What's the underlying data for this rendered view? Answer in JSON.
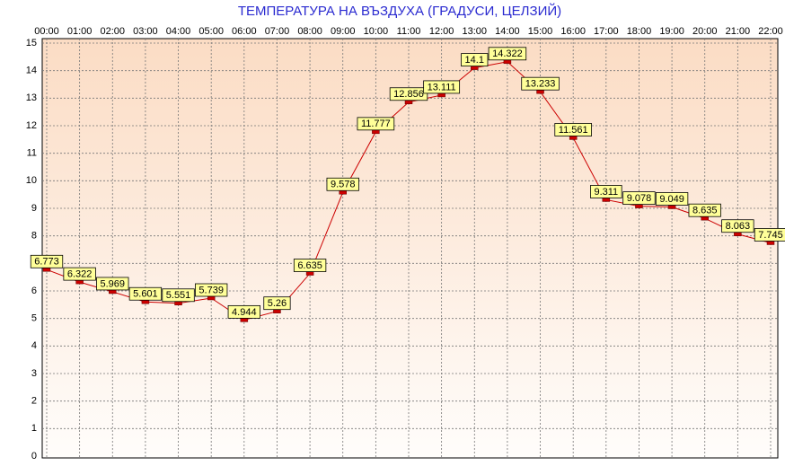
{
  "chart_data": {
    "type": "line",
    "title": "ТЕМПЕРАТУРА НА ВЪЗДУХА  (ГРАДУСИ, ЦЕЛЗИЙ)",
    "categories": [
      "00:00",
      "01:00",
      "02:00",
      "03:00",
      "04:00",
      "05:00",
      "06:00",
      "07:00",
      "08:00",
      "09:00",
      "10:00",
      "11:00",
      "12:00",
      "13:00",
      "14:00",
      "15:00",
      "16:00",
      "17:00",
      "18:00",
      "19:00",
      "20:00",
      "21:00",
      "22:00"
    ],
    "values": [
      6.773,
      6.322,
      5.969,
      5.601,
      5.551,
      5.739,
      4.944,
      5.26,
      6.635,
      9.578,
      11.777,
      12.856,
      13.111,
      14.1,
      14.322,
      13.233,
      11.561,
      9.311,
      9.078,
      9.049,
      8.635,
      8.063,
      7.745
    ],
    "color": "#cc0000",
    "ylim": [
      0,
      15
    ],
    "yticks": [
      0,
      1,
      2,
      3,
      4,
      5,
      6,
      7,
      8,
      9,
      10,
      11,
      12,
      13,
      14,
      15
    ],
    "grid": true
  }
}
